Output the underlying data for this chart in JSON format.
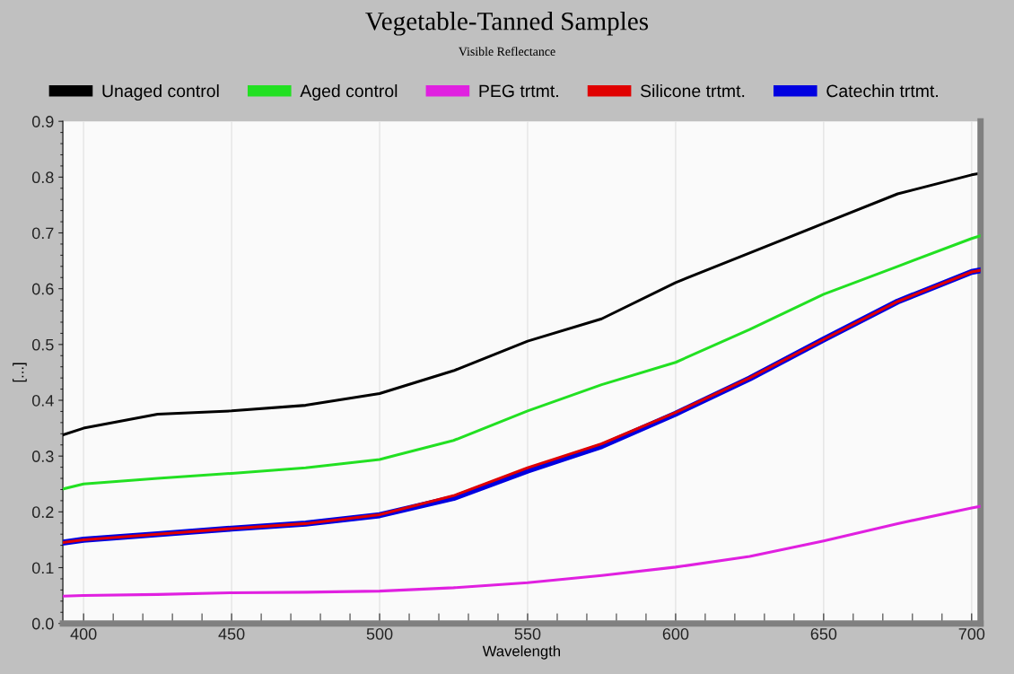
{
  "chart_data": {
    "type": "line",
    "title": "Vegetable-Tanned Samples",
    "subtitle": "Visible Reflectance",
    "xlabel": "Wavelength",
    "ylabel": "[...]",
    "x": [
      393,
      400,
      425,
      450,
      475,
      500,
      525,
      550,
      575,
      600,
      625,
      650,
      675,
      700,
      703
    ],
    "series": [
      {
        "name": "Unaged control",
        "color": "#000000",
        "values": [
          0.338,
          0.35,
          0.375,
          0.381,
          0.391,
          0.412,
          0.453,
          0.506,
          0.546,
          0.611,
          0.664,
          0.717,
          0.77,
          0.804,
          0.807
        ]
      },
      {
        "name": "Aged control",
        "color": "#22e022",
        "values": [
          0.241,
          0.25,
          0.26,
          0.269,
          0.279,
          0.294,
          0.328,
          0.381,
          0.428,
          0.468,
          0.527,
          0.59,
          0.64,
          0.69,
          0.695
        ]
      },
      {
        "name": "PEG trtmt.",
        "color": "#e020e0",
        "values": [
          0.049,
          0.05,
          0.052,
          0.055,
          0.056,
          0.058,
          0.064,
          0.073,
          0.086,
          0.101,
          0.12,
          0.148,
          0.179,
          0.207,
          0.21
        ]
      },
      {
        "name": "Silicone trtmt.",
        "color": "#e00000",
        "values": [
          0.145,
          0.15,
          0.16,
          0.17,
          0.179,
          0.195,
          0.229,
          0.279,
          0.322,
          0.378,
          0.44,
          0.509,
          0.577,
          0.63,
          0.633
        ]
      },
      {
        "name": "Catechin trtmt.",
        "color": "#0000e0",
        "values": [
          0.145,
          0.15,
          0.16,
          0.17,
          0.179,
          0.194,
          0.225,
          0.274,
          0.318,
          0.376,
          0.439,
          0.509,
          0.577,
          0.63,
          0.633
        ]
      }
    ],
    "xlim": [
      393,
      703
    ],
    "ylim": [
      0,
      0.9
    ],
    "xticks": [
      400,
      450,
      500,
      550,
      600,
      650,
      700
    ],
    "yticks": [
      {
        "value": 0,
        "label": "0.0"
      },
      0.1,
      0.2,
      0.3,
      0.4,
      0.5,
      0.6,
      0.7,
      0.8,
      0.9
    ],
    "grid": "x",
    "legend": "top",
    "marker": "none",
    "line_style": "solid"
  }
}
